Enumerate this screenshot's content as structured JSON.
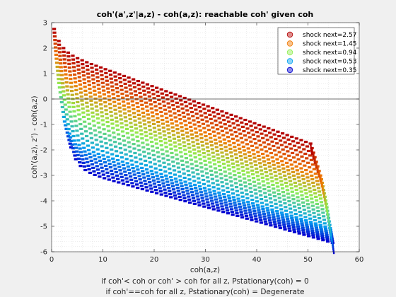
{
  "chart_data": {
    "type": "scatter",
    "title": "coh'(a',z'|a,z) - coh(a,z): reachable coh' given coh",
    "xlabel": "coh(a,z)",
    "ylabel": "coh'(a,z), z') - coh(a,z)",
    "notes": [
      "if coh'< coh or coh' > coh for all z, Pstationary(coh) = 0",
      "if coh'==coh for all z, Pstationary(coh) = Degenerate"
    ],
    "xlim": [
      0,
      60
    ],
    "ylim": [
      -6,
      3
    ],
    "xticks": [
      0,
      10,
      20,
      30,
      40,
      50,
      60
    ],
    "yticks": [
      3,
      2,
      1,
      0,
      -1,
      -2,
      -3,
      -4,
      -5,
      -6
    ],
    "grid": "on",
    "legend_position": "top-right",
    "zero_line": true,
    "series": [
      {
        "name": "shock next=2.57",
        "color": "#b30000",
        "xstart": 0.5,
        "xend": 50.5,
        "ystart": 2.75,
        "yend": -1.75
      },
      {
        "name": "shock next=1.45",
        "color": "#f07800",
        "xstart": 0.9,
        "xend": 52.5,
        "ystart": 1.7,
        "yend": -3.05
      },
      {
        "name": "shock next=0.94",
        "color": "#90ee50",
        "xstart": 1.5,
        "xend": 53.5,
        "ystart": 0.55,
        "yend": -4.05
      },
      {
        "name": "shock next=0.53",
        "color": "#00a0f0",
        "xstart": 2.5,
        "xend": 54.3,
        "ystart": -0.85,
        "yend": -5.05
      },
      {
        "name": "shock next=0.35",
        "color": "#0000d0",
        "xstart": 3.8,
        "xend": 54.8,
        "ystart": -1.9,
        "yend": -5.65
      }
    ]
  }
}
